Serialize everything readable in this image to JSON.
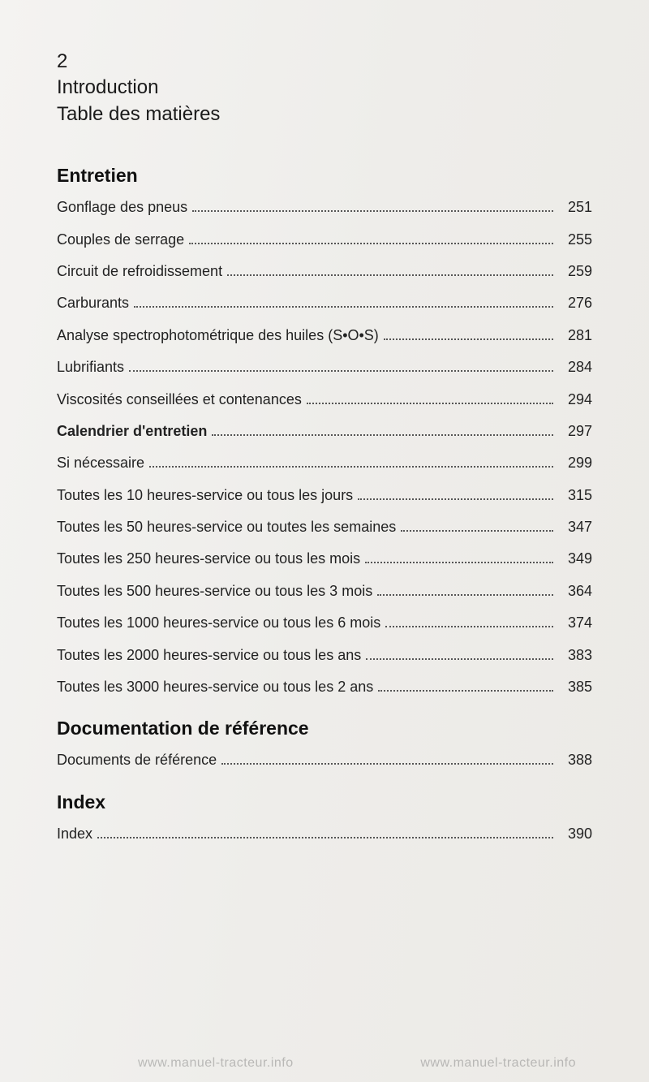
{
  "colors": {
    "page_bg": "#f0efed",
    "text": "#1a1a1a",
    "dots": "#555555",
    "watermark": "rgba(120,120,120,0.45)"
  },
  "typography": {
    "header_fontsize_pt": 18,
    "section_title_fontsize_pt": 17,
    "toc_fontsize_pt": 13.5,
    "font_family": "Arial / Helvetica"
  },
  "header": {
    "page_number": "2",
    "line1": "Introduction",
    "line2": "Table des matières"
  },
  "sections": [
    {
      "title": "Entretien",
      "items": [
        {
          "label": "Gonflage des pneus",
          "page": "251",
          "bold": false
        },
        {
          "label": "Couples de serrage",
          "page": "255",
          "bold": false
        },
        {
          "label": "Circuit de refroidissement",
          "page": "259",
          "bold": false
        },
        {
          "label": "Carburants",
          "page": "276",
          "bold": false
        },
        {
          "label": "Analyse spectrophotométrique des huiles (S•O•S)",
          "page": "281",
          "bold": false
        },
        {
          "label": "Lubrifiants",
          "page": "284",
          "bold": false
        },
        {
          "label": "Viscosités conseillées et contenances",
          "page": "294",
          "bold": false
        },
        {
          "label": "Calendrier d'entretien",
          "page": "297",
          "bold": true
        },
        {
          "label": "Si nécessaire",
          "page": "299",
          "bold": false
        },
        {
          "label": "Toutes les 10 heures-service ou tous les jours",
          "page": "315",
          "bold": false
        },
        {
          "label": "Toutes les 50 heures-service ou toutes les semaines",
          "page": "347",
          "bold": false
        },
        {
          "label": "Toutes les 250 heures-service ou tous les mois",
          "page": "349",
          "bold": false
        },
        {
          "label": "Toutes les 500 heures-service ou tous les 3 mois",
          "page": "364",
          "bold": false
        },
        {
          "label": "Toutes les 1000 heures-service ou tous les 6 mois",
          "page": "374",
          "bold": false
        },
        {
          "label": "Toutes les 2000 heures-service ou tous les ans",
          "page": "383",
          "bold": false
        },
        {
          "label": "Toutes les 3000 heures-service ou tous les 2 ans",
          "page": "385",
          "bold": false
        }
      ]
    },
    {
      "title": "Documentation de référence",
      "items": [
        {
          "label": "Documents de référence",
          "page": "388",
          "bold": false
        }
      ]
    },
    {
      "title": "Index",
      "items": [
        {
          "label": "Index",
          "page": "390",
          "bold": false
        }
      ]
    }
  ],
  "watermark": {
    "text": "www.manuel-tracteur.info"
  }
}
